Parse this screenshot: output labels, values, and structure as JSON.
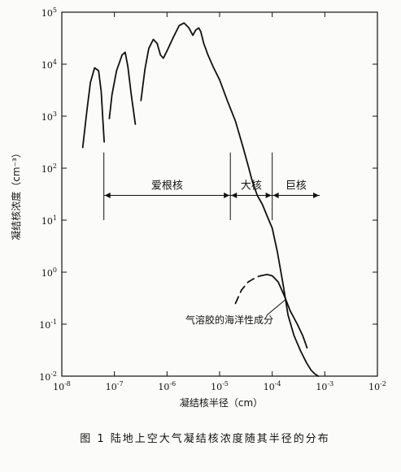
{
  "chart_data": {
    "type": "line",
    "title": "",
    "caption": "图 1    陆地上空大气凝结核浓度随其半径的分布",
    "xlabel": "凝结核半径（cm）",
    "ylabel": "凝结核浓度（cm⁻³）",
    "x_scale": "log",
    "y_scale": "log",
    "xlim": [
      1e-08,
      0.01
    ],
    "ylim": [
      0.01,
      100000.0
    ],
    "x_ticks": [
      {
        "base": "10",
        "exp": "-8"
      },
      {
        "base": "10",
        "exp": "-7"
      },
      {
        "base": "10",
        "exp": "-6"
      },
      {
        "base": "10",
        "exp": "-5"
      },
      {
        "base": "10",
        "exp": "-4"
      },
      {
        "base": "10",
        "exp": "-3"
      },
      {
        "base": "10",
        "exp": "-2"
      }
    ],
    "y_ticks": [
      {
        "base": "10",
        "exp": "-2"
      },
      {
        "base": "10",
        "exp": "-1"
      },
      {
        "base": "10",
        "exp": "0"
      },
      {
        "base": "10",
        "exp": "1"
      },
      {
        "base": "10",
        "exp": "2"
      },
      {
        "base": "10",
        "exp": "3"
      },
      {
        "base": "10",
        "exp": "4"
      },
      {
        "base": "10",
        "exp": "5"
      }
    ],
    "regions": [
      {
        "label": "爱根核",
        "x_from": 6.3e-08,
        "x_to": 1.6e-05
      },
      {
        "label": "大核",
        "x_from": 1.6e-05,
        "x_to": 0.0001
      },
      {
        "label": "巨核",
        "x_from": 0.0001,
        "x_to": 0.0008
      }
    ],
    "annotation": "气溶胶的海洋性成分",
    "series": [
      {
        "style": "solid",
        "segments": [
          [
            [
              2.5e-08,
              250
            ],
            [
              3e-08,
              1300
            ],
            [
              3.5e-08,
              4500
            ],
            [
              4.2e-08,
              8500
            ],
            [
              5e-08,
              7500
            ],
            [
              5.6e-08,
              3000
            ],
            [
              6.1e-08,
              700
            ],
            [
              6.4e-08,
              320
            ]
          ],
          [
            [
              8e-08,
              900
            ],
            [
              9e-08,
              2600
            ],
            [
              1.1e-07,
              7500
            ],
            [
              1.4e-07,
              15000
            ],
            [
              1.6e-07,
              17000
            ],
            [
              1.8e-07,
              9000
            ],
            [
              2.1e-07,
              2500
            ],
            [
              2.5e-07,
              700
            ]
          ],
          [
            [
              3.2e-07,
              2000
            ],
            [
              3.8e-07,
              8000
            ],
            [
              4.5e-07,
              20000
            ],
            [
              5.5e-07,
              30000
            ],
            [
              6.5e-07,
              25000
            ],
            [
              7.5e-07,
              15000
            ],
            [
              8.5e-07,
              13000
            ],
            [
              1e-06,
              18000
            ],
            [
              1.3e-06,
              32000
            ],
            [
              1.7e-06,
              55000
            ],
            [
              2.1e-06,
              62000
            ],
            [
              2.6e-06,
              50000
            ],
            [
              3.1e-06,
              36000
            ],
            [
              3.5e-06,
              45000
            ],
            [
              4e-06,
              50000
            ],
            [
              4.4e-06,
              42000
            ],
            [
              5e-06,
              25000
            ],
            [
              6e-06,
              15000
            ],
            [
              7.5e-06,
              9000
            ],
            [
              1e-05,
              5000
            ],
            [
              1.4e-05,
              2000
            ],
            [
              2e-05,
              800
            ],
            [
              2.8e-05,
              250
            ],
            [
              3.5e-05,
              110
            ],
            [
              4.2e-05,
              55
            ],
            [
              5.2e-05,
              30
            ],
            [
              6.5e-05,
              20
            ],
            [
              8e-05,
              12
            ],
            [
              0.0001,
              7
            ],
            [
              0.000125,
              2.5
            ],
            [
              0.00016,
              0.6
            ],
            [
              0.0002,
              0.15
            ],
            [
              0.00026,
              0.06
            ],
            [
              0.00035,
              0.03
            ],
            [
              0.00045,
              0.018
            ],
            [
              0.00055,
              0.013
            ],
            [
              0.00065,
              0.011
            ],
            [
              0.00075,
              0.01
            ]
          ]
        ]
      },
      {
        "style": "dashed",
        "segments": [
          [
            [
              2e-05,
              0.25
            ],
            [
              2.6e-05,
              0.45
            ],
            [
              3.5e-05,
              0.65
            ],
            [
              5e-05,
              0.8
            ],
            [
              6e-05,
              0.85
            ]
          ]
        ]
      },
      {
        "style": "solid",
        "segments": [
          [
            [
              6e-05,
              0.85
            ],
            [
              8e-05,
              0.9
            ],
            [
              0.0001,
              0.85
            ],
            [
              0.00013,
              0.65
            ],
            [
              0.00017,
              0.35
            ],
            [
              0.00022,
              0.18
            ],
            [
              0.0003,
              0.1
            ],
            [
              0.00038,
              0.06
            ],
            [
              0.00046,
              0.035
            ]
          ]
        ]
      }
    ]
  }
}
